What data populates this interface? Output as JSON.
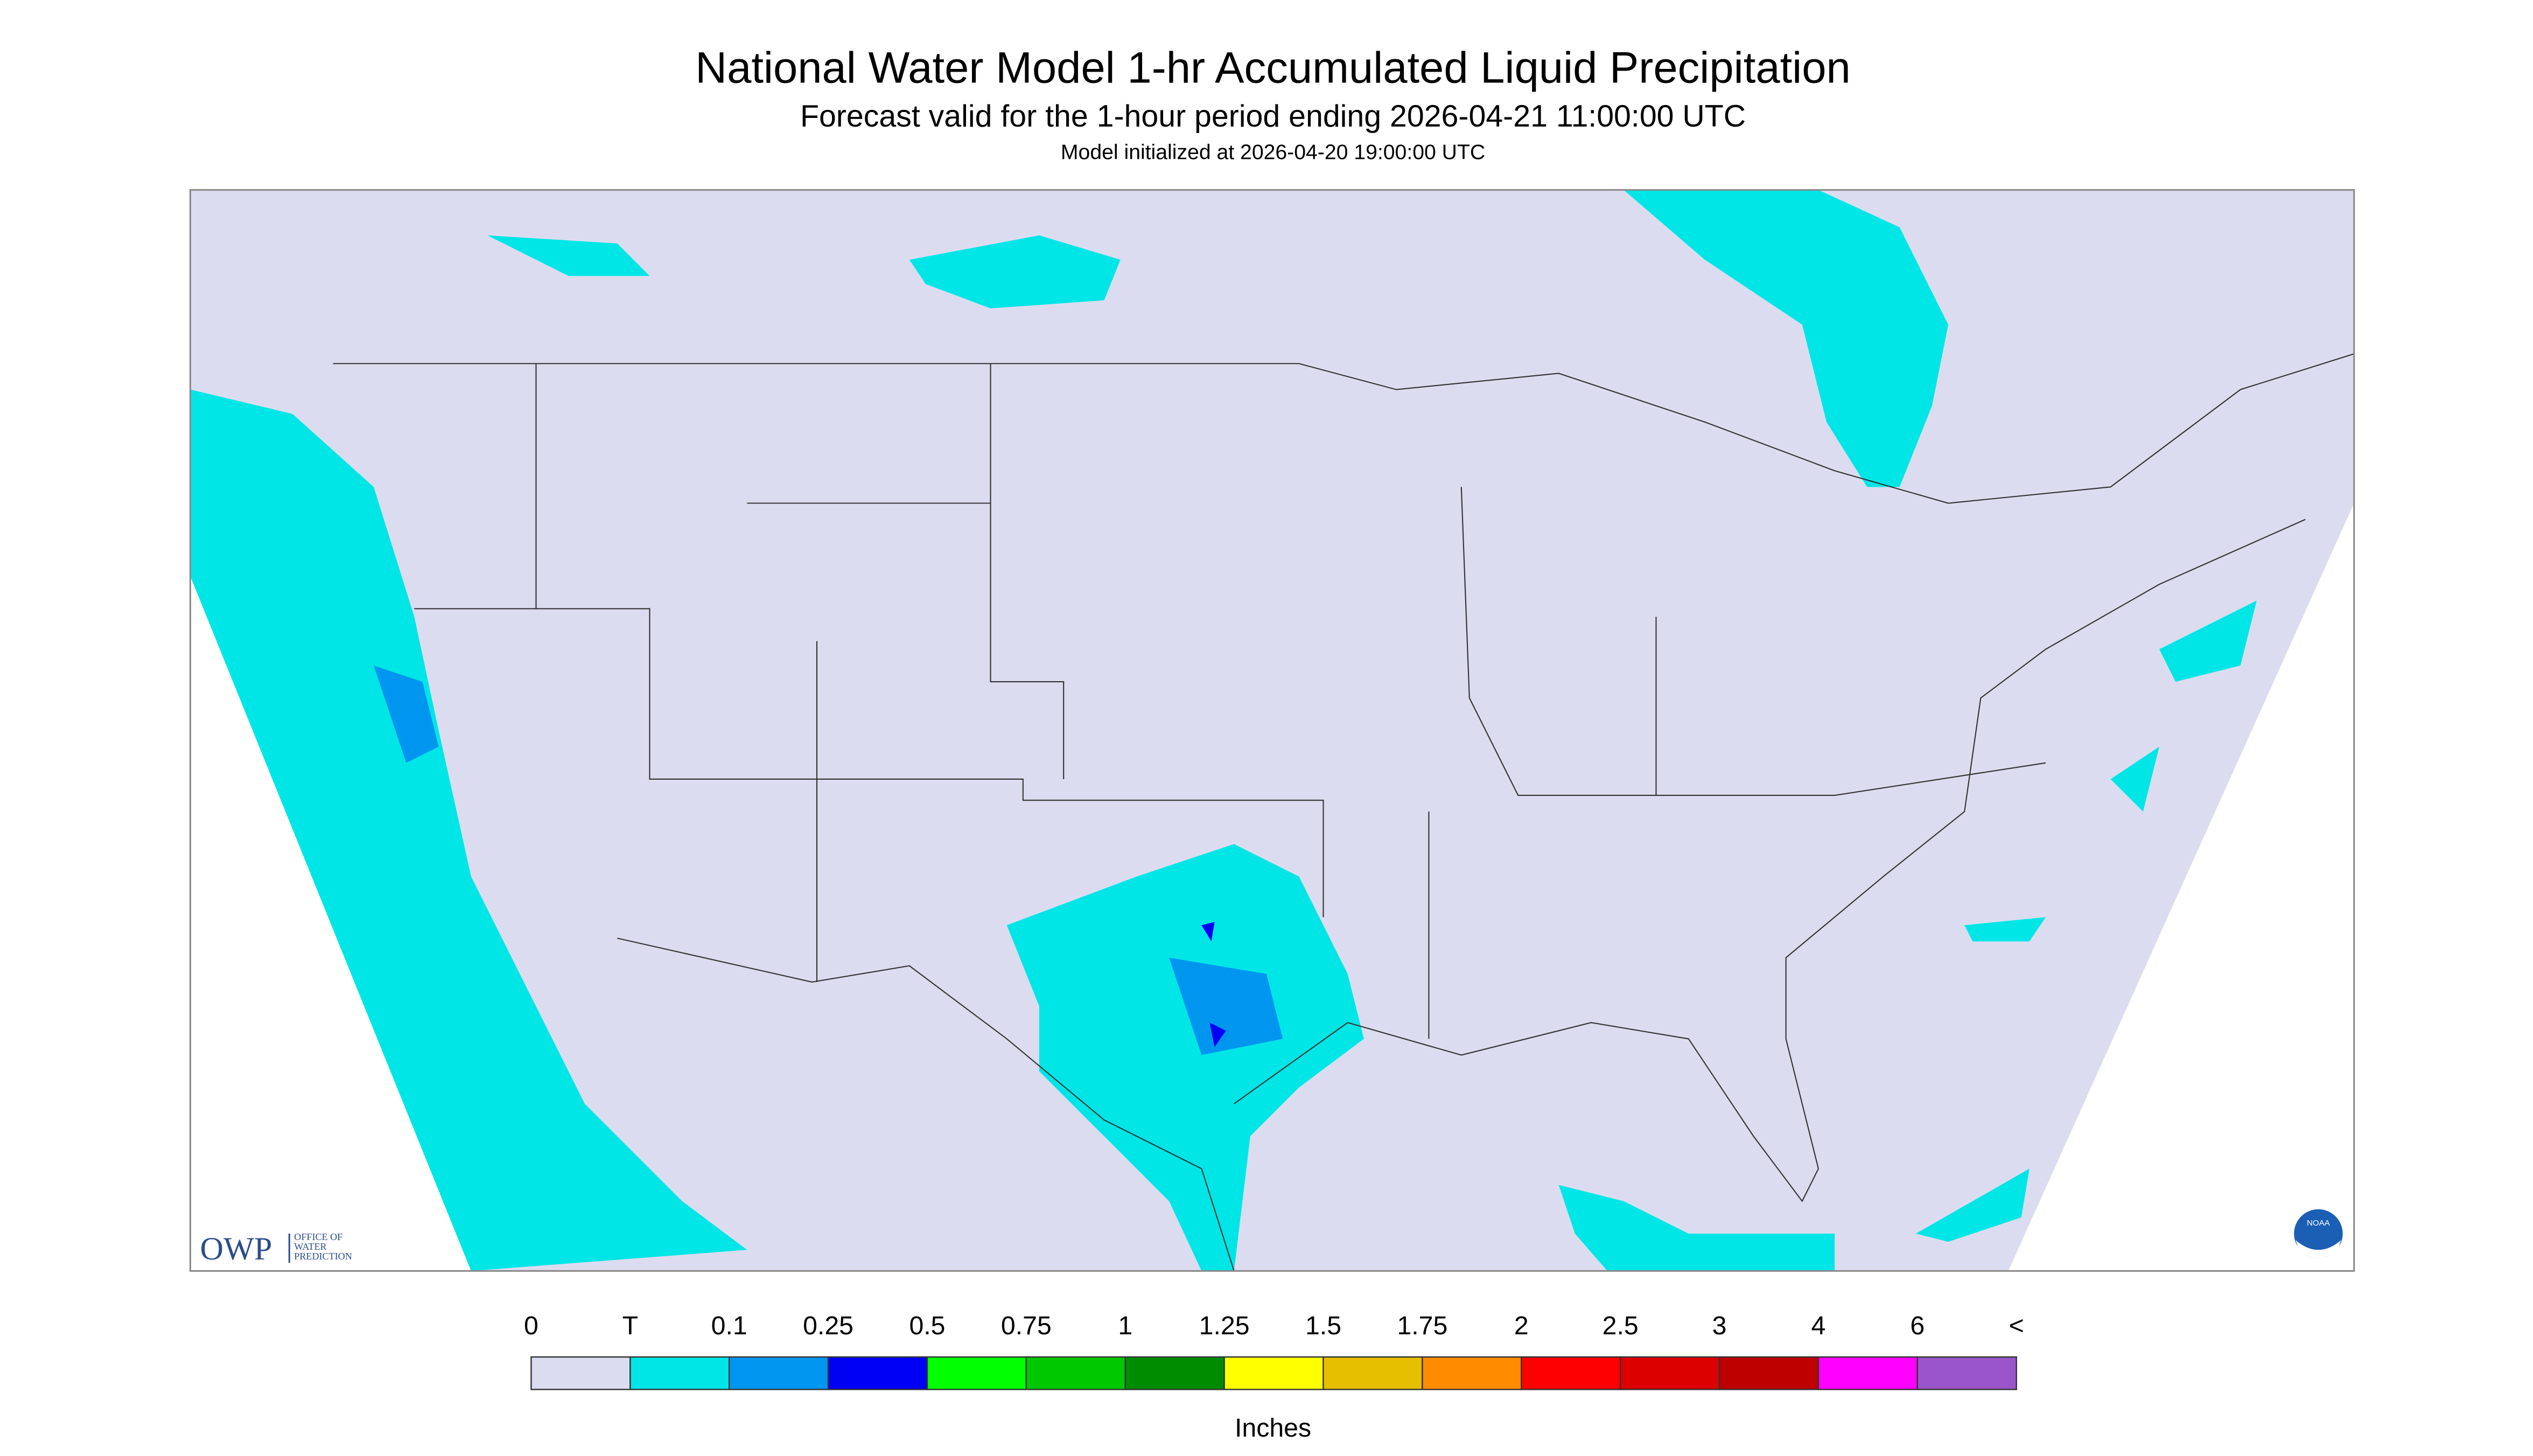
{
  "header": {
    "title": "National Water Model 1-hr Accumulated Liquid Precipitation",
    "subtitle": "Forecast valid for the 1-hour period ending 2026-04-21 11:00:00 UTC",
    "note": "Model initialized at 2026-04-20 19:00:00 UTC"
  },
  "logos": {
    "owp": "OWP",
    "owp_line1": "OFFICE OF",
    "owp_line2": "WATER",
    "owp_line3": "PREDICTION",
    "noaa": "NOAA"
  },
  "legend": {
    "labels": [
      "0",
      "T",
      "0.1",
      "0.25",
      "0.5",
      "0.75",
      "1",
      "1.25",
      "1.5",
      "1.75",
      "2",
      "2.5",
      "3",
      "4",
      "6",
      "<"
    ],
    "colors": [
      "#dcdcf0",
      "#00e6e6",
      "#0096f0",
      "#0000f5",
      "#00ff00",
      "#00c800",
      "#008c00",
      "#ffff00",
      "#e6be00",
      "#ff8c00",
      "#ff0000",
      "#dc0000",
      "#be0000",
      "#ff00ff",
      "#9955c9"
    ],
    "unit": "Inches"
  }
}
